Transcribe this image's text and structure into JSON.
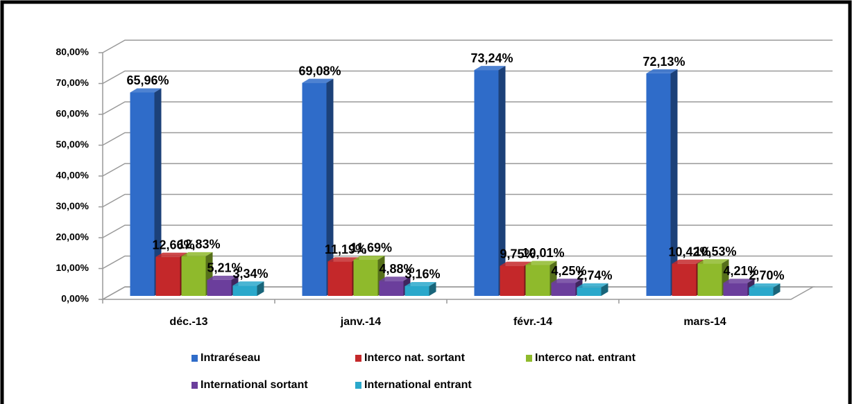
{
  "chart_data": {
    "type": "bar3d",
    "categories": [
      "déc.-13",
      "janv.-14",
      "févr.-14",
      "mars-14"
    ],
    "series": [
      {
        "name": "Intraréseau",
        "color": "#2f6cc9",
        "values": [
          65.96,
          69.08,
          73.24,
          72.13
        ],
        "value_labels": [
          "65,96%",
          "69,08%",
          "73,24%",
          "72,13%"
        ]
      },
      {
        "name": "Interco nat. sortant",
        "color": "#c4282a",
        "values": [
          12.66,
          11.19,
          9.75,
          10.42
        ],
        "value_labels": [
          "12,66%",
          "11,19%",
          "9,75%",
          "10,42%"
        ]
      },
      {
        "name": "Interco nat. entrant",
        "color": "#8fba2c",
        "values": [
          12.83,
          11.69,
          10.01,
          10.53
        ],
        "value_labels": [
          "12,83%",
          "11,69%",
          "10,01%",
          "10,53%"
        ]
      },
      {
        "name": "International sortant",
        "color": "#6b3e9c",
        "values": [
          5.21,
          4.88,
          4.25,
          4.21
        ],
        "value_labels": [
          "5,21%",
          "4,88%",
          "4,25%",
          "4,21%"
        ]
      },
      {
        "name": "International entrant",
        "color": "#2aa8cb",
        "values": [
          3.34,
          3.16,
          2.74,
          2.7
        ],
        "value_labels": [
          "3,34%",
          "3,16%",
          "2,74%",
          "2,70%"
        ]
      }
    ],
    "ylim": [
      0,
      80
    ],
    "yticks": [
      {
        "value": 0,
        "label": "0,00%"
      },
      {
        "value": 10,
        "label": "10,00%"
      },
      {
        "value": 20,
        "label": "20,00%"
      },
      {
        "value": 30,
        "label": "30,00%"
      },
      {
        "value": 40,
        "label": "40,00%"
      },
      {
        "value": 50,
        "label": "50,00%"
      },
      {
        "value": 60,
        "label": "60,00%"
      },
      {
        "value": 70,
        "label": "70,00%"
      },
      {
        "value": 80,
        "label": "80,00%"
      }
    ],
    "grid": true,
    "legend": "bottom"
  }
}
